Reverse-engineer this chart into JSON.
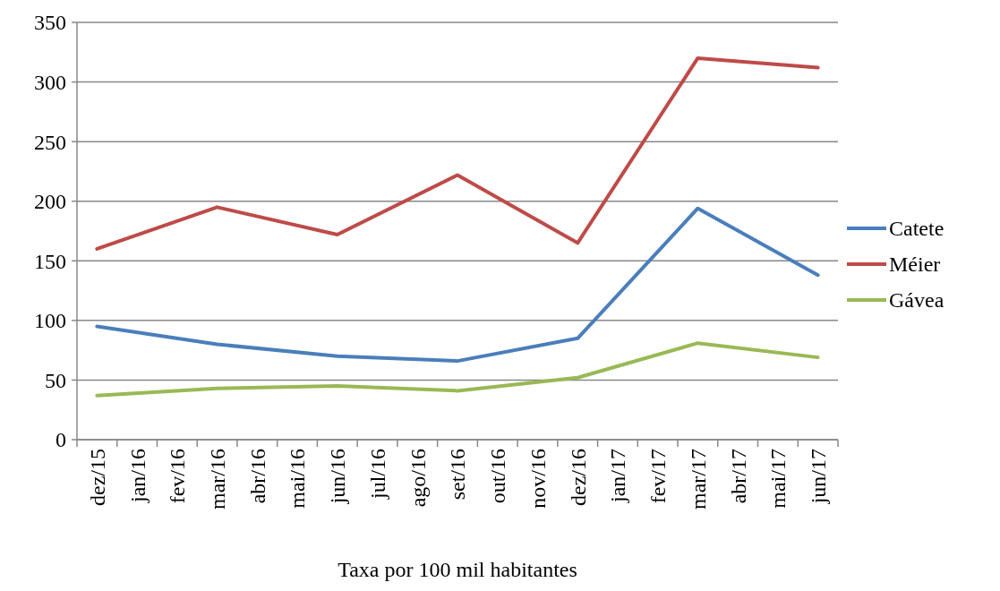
{
  "chart_data": {
    "type": "line",
    "xlabel": "Taxa por 100 mil habitantes",
    "categories": [
      "dez/15",
      "jan/16",
      "fev/16",
      "mar/16",
      "abr/16",
      "mai/16",
      "jun/16",
      "jul/16",
      "ago/16",
      "set/16",
      "out/16",
      "nov/16",
      "dez/16",
      "jan/17",
      "fev/17",
      "mar/17",
      "abr/17",
      "mai/17",
      "jun/17"
    ],
    "series": [
      {
        "name": "Catete",
        "color": "#4a7ebb",
        "values": [
          95,
          null,
          null,
          80,
          null,
          null,
          70,
          null,
          null,
          66,
          null,
          null,
          85,
          null,
          null,
          194,
          null,
          null,
          138
        ]
      },
      {
        "name": "Méier",
        "color": "#be4b48",
        "values": [
          160,
          null,
          null,
          195,
          null,
          null,
          172,
          null,
          null,
          222,
          null,
          null,
          165,
          null,
          null,
          320,
          null,
          null,
          312
        ]
      },
      {
        "name": "Gávea",
        "color": "#98b954",
        "values": [
          37,
          null,
          null,
          43,
          null,
          null,
          45,
          null,
          null,
          41,
          null,
          null,
          52,
          null,
          null,
          81,
          null,
          null,
          69
        ]
      }
    ],
    "ylim": [
      0,
      350
    ],
    "yticks": [
      0,
      50,
      100,
      150,
      200,
      250,
      300,
      350
    ],
    "grid": "y",
    "legend": "right",
    "marker": "none",
    "line_style": "solid"
  }
}
